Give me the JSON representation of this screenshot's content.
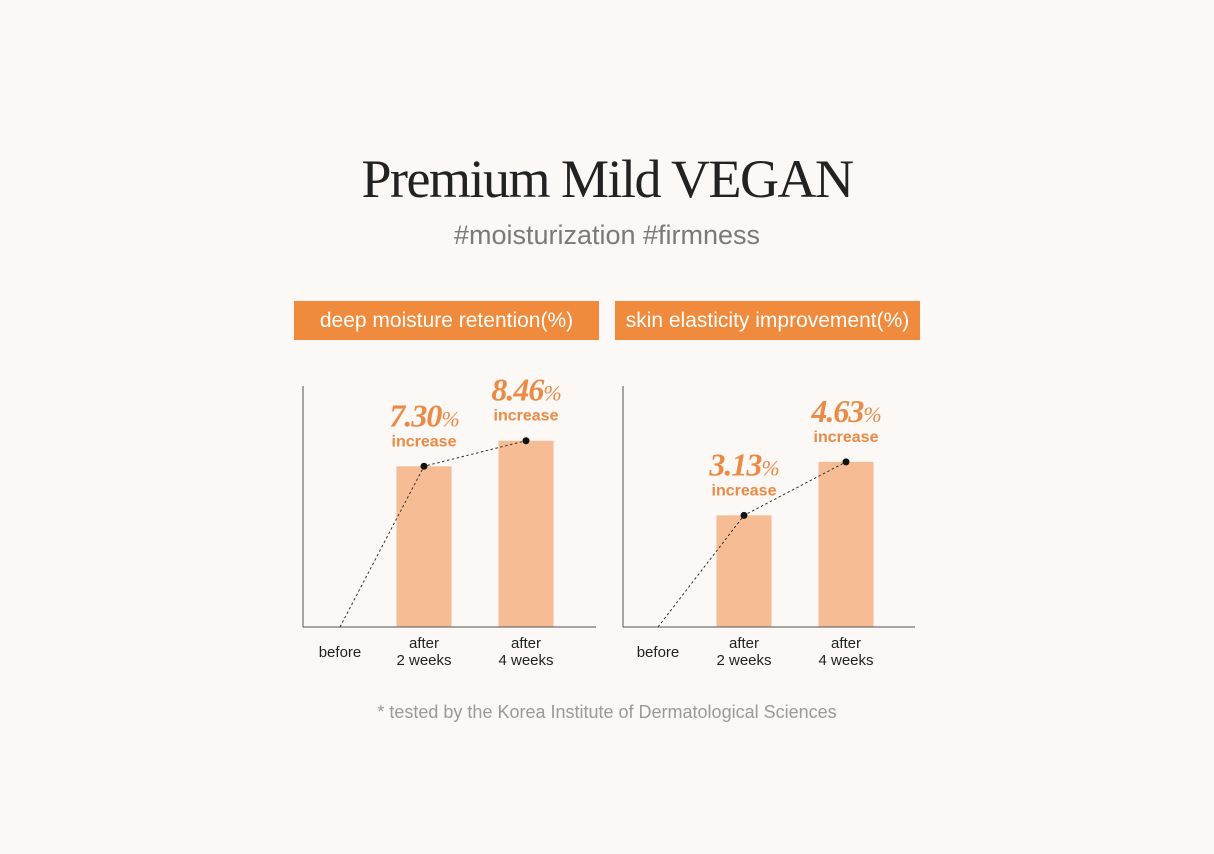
{
  "title": "Premium Mild VEGAN",
  "subtitle": "#moisturization #firmness",
  "footnote": "* tested by the Korea Institute of Dermatological Sciences",
  "colors": {
    "banner": "#f08a3c",
    "bar": "#f6bd94",
    "value_text": "#ec8a45",
    "axis": "#555555"
  },
  "chart_data": [
    {
      "type": "bar",
      "title": "deep moisture retention(%)",
      "categories": [
        [
          "before"
        ],
        [
          "after",
          "2 weeks"
        ],
        [
          "after",
          "4 weeks"
        ]
      ],
      "values": [
        0,
        7.3,
        8.46
      ],
      "labels": [
        null,
        {
          "value": "7.30",
          "unit": "%",
          "text": "increase"
        },
        {
          "value": "8.46",
          "unit": "%",
          "text": "increase"
        }
      ],
      "trend_line": "dotted",
      "ylim": [
        0,
        10.9
      ]
    },
    {
      "type": "bar",
      "title": "skin elasticity improvement(%)",
      "categories": [
        [
          "before"
        ],
        [
          "after",
          "2 weeks"
        ],
        [
          "after",
          "4 weeks"
        ]
      ],
      "values": [
        0,
        3.13,
        4.63
      ],
      "labels": [
        null,
        {
          "value": "3.13",
          "unit": "%",
          "text": "increase"
        },
        {
          "value": "4.63",
          "unit": "%",
          "text": "increase"
        }
      ],
      "trend_line": "dotted",
      "ylim": [
        0,
        6.73
      ]
    }
  ]
}
